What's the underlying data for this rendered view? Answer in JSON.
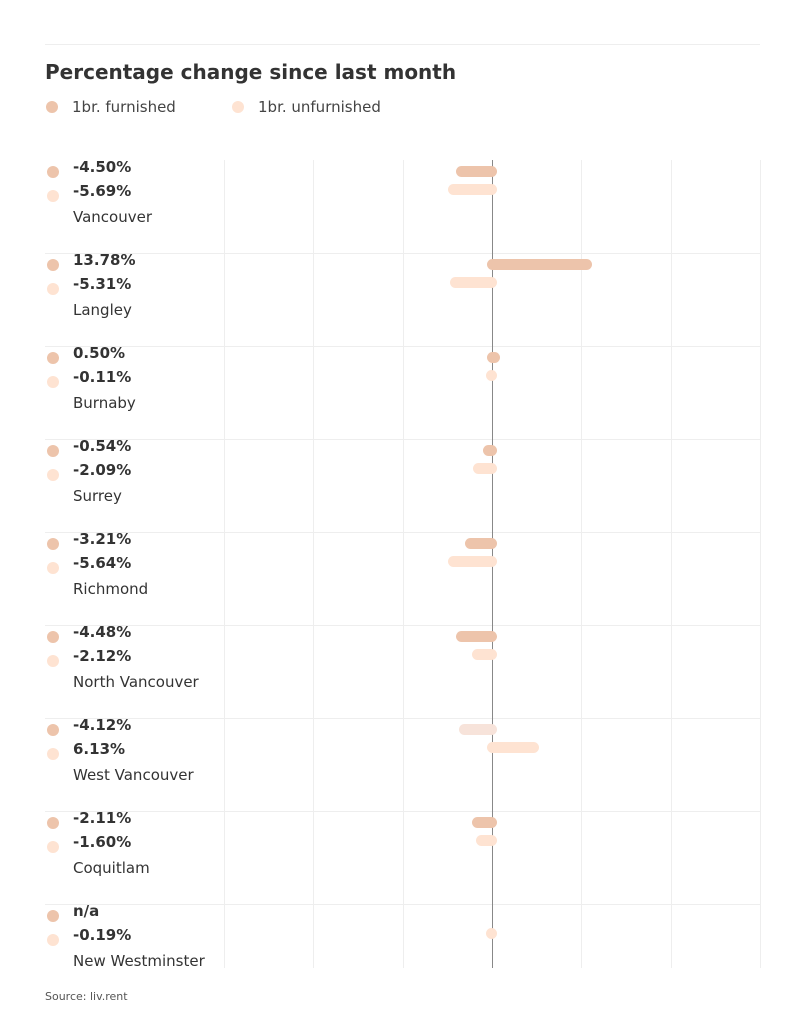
{
  "chart_data": {
    "type": "bar",
    "title": "Percentage change since last month",
    "orientation": "horizontal",
    "xlim": [
      -39,
      39
    ],
    "grid": true,
    "legend_position": "top-left",
    "colors": {
      "furnished": "#EDC4AB",
      "unfurnished": "#FEE3D2"
    },
    "categories": [
      "Vancouver",
      "Langley",
      "Burnaby",
      "Surrey",
      "Richmond",
      "North Vancouver",
      "West Vancouver",
      "Coquitlam",
      "New Westminster"
    ],
    "series": [
      {
        "name": "1br. furnished",
        "values": [
          -4.5,
          13.78,
          0.5,
          -0.54,
          -3.21,
          -4.48,
          -4.12,
          -2.11,
          null
        ],
        "labels": [
          "-4.50%",
          "13.78%",
          "0.50%",
          "-0.54%",
          "-3.21%",
          "-4.48%",
          "-4.12%",
          "-2.11%",
          "n/a"
        ]
      },
      {
        "name": "1br. unfurnished",
        "values": [
          -5.69,
          -5.31,
          -0.11,
          -2.09,
          -5.64,
          -2.12,
          6.13,
          -1.6,
          -0.19
        ],
        "labels": [
          "-5.69%",
          "-5.31%",
          "-0.11%",
          "-2.09%",
          "-5.64%",
          "-2.12%",
          "6.13%",
          "-1.60%",
          "-0.19%"
        ]
      }
    ]
  },
  "source": "Source: liv.rent"
}
